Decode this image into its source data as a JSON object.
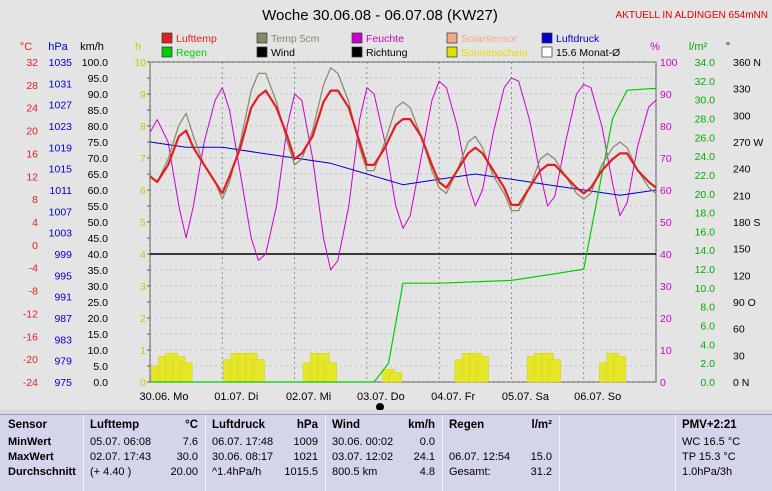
{
  "title": "Woche 30.06.08 - 06.07.08 (KW27)",
  "status": "AKTUELL IN ALDINGEN 654mNN",
  "legend": [
    {
      "name": "Lufttemp",
      "color": "#e02020"
    },
    {
      "name": "Temp 5cm",
      "color": "#888866"
    },
    {
      "name": "Feuchte",
      "color": "#cc00cc"
    },
    {
      "name": "Solarsensor",
      "color": "#f8a888"
    },
    {
      "name": "Luftdruck",
      "color": "#0000cc"
    },
    {
      "name": "Regen",
      "color": "#00cc00"
    },
    {
      "name": "Wind",
      "color": "#000000"
    },
    {
      "name": "Richtung",
      "color": "#000000"
    },
    {
      "name": "Sonnenschein",
      "color": "#e0e000"
    },
    {
      "name": "15.6 Monat-Ø",
      "color": "#ffffff"
    }
  ],
  "chart_data": {
    "type": "line",
    "x_unit_days": "30.06. – 06.07.",
    "x_labels": [
      "30.06. Mo",
      "01.07. Di",
      "02.07. Mi",
      "03.07. Do",
      "04.07. Fr",
      "05.07. Sa",
      "06.07. So"
    ],
    "axes": {
      "temp": {
        "unit": "°C",
        "ticks": [
          32.0,
          28.0,
          24.0,
          20.0,
          16.0,
          12.0,
          8.0,
          4.0,
          0.0,
          -4.0,
          -8.0,
          -12.0,
          -16.0,
          -20.0,
          -24.0
        ],
        "range": [
          -24,
          32
        ],
        "color": "#e02020"
      },
      "pressure": {
        "unit": "hPa",
        "ticks": [
          1035,
          1031,
          1027,
          1023,
          1019,
          1015,
          1011,
          1007,
          1003,
          999,
          995,
          991,
          987,
          983,
          979,
          975
        ],
        "range": [
          975,
          1035
        ],
        "color": "#0000cc"
      },
      "wind": {
        "unit": "km/h",
        "ticks": [
          "100.0",
          "95.0",
          "90.0",
          "85.0",
          "80.0",
          "75.0",
          "70.0",
          "65.0",
          "60.0",
          "55.0",
          "50.0",
          "45.0",
          "40.0",
          "35.0",
          "30.0",
          "25.0",
          "20.0",
          "15.0",
          "10.0",
          "5.0",
          "0.0"
        ],
        "range": [
          0,
          100
        ],
        "color": "#000000"
      },
      "sun": {
        "unit": "h",
        "ticks": [
          10,
          9,
          8,
          7,
          6,
          5,
          4,
          3,
          2,
          1,
          0
        ],
        "range": [
          0,
          10
        ],
        "color": "#c8c800"
      },
      "humidity": {
        "unit": "%",
        "ticks": [
          100,
          90,
          80,
          70,
          60,
          50,
          40,
          30,
          20,
          10,
          0
        ],
        "range": [
          0,
          100
        ],
        "color": "#cc00cc"
      },
      "rain": {
        "unit": "l/m²",
        "ticks": [
          "34.0",
          "32.0",
          "30.0",
          "28.0",
          "26.0",
          "24.0",
          "22.0",
          "20.0",
          "18.0",
          "16.0",
          "14.0",
          "12.0",
          "10.0",
          "8.0",
          "6.0",
          "4.0",
          "2.0",
          "0.0"
        ],
        "range": [
          0,
          34
        ],
        "color": "#00aa00"
      },
      "direction": {
        "unit": "°",
        "ticks": [
          "360 N",
          "330",
          "300",
          "270 W",
          "240",
          "210",
          "180 S",
          "150",
          "120",
          "90 O",
          "60",
          "30",
          "0 N"
        ],
        "range": [
          0,
          360
        ],
        "color": "#000000"
      }
    },
    "reference_line": {
      "axis": "wind",
      "value": 40
    },
    "series": [
      {
        "name": "Lufttemp",
        "axis": "temp",
        "x": [
          0,
          0.1,
          0.25,
          0.4,
          0.5,
          0.6,
          0.75,
          0.9,
          1.0,
          1.1,
          1.25,
          1.4,
          1.5,
          1.6,
          1.75,
          1.9,
          2.0,
          2.1,
          2.25,
          2.4,
          2.5,
          2.6,
          2.75,
          2.9,
          3.0,
          3.1,
          3.25,
          3.4,
          3.5,
          3.6,
          3.75,
          3.9,
          4.0,
          4.1,
          4.25,
          4.4,
          4.5,
          4.6,
          4.75,
          4.9,
          5.0,
          5.1,
          5.25,
          5.4,
          5.5,
          5.6,
          5.75,
          5.9,
          6.0,
          6.1,
          6.25,
          6.4,
          6.5,
          6.6,
          6.75,
          6.9,
          7.0
        ],
        "y": [
          12,
          11,
          14,
          19,
          20,
          17,
          14,
          11,
          9,
          12,
          17,
          24,
          26,
          27,
          24,
          19,
          15,
          16,
          19,
          25,
          27,
          27,
          24,
          18,
          14,
          14,
          17,
          21,
          22,
          22,
          19,
          14,
          11,
          10,
          13,
          16,
          17,
          16,
          13,
          10,
          7,
          7,
          10,
          13,
          14,
          14,
          12,
          10,
          9,
          10,
          13,
          15,
          16,
          16,
          13,
          11,
          10
        ]
      },
      {
        "name": "Temp 5cm",
        "axis": "temp",
        "x": [
          0,
          0.1,
          0.25,
          0.4,
          0.5,
          0.6,
          0.75,
          0.9,
          1.0,
          1.1,
          1.25,
          1.4,
          1.5,
          1.6,
          1.75,
          1.9,
          2.0,
          2.1,
          2.25,
          2.4,
          2.5,
          2.6,
          2.75,
          2.9,
          3.0,
          3.1,
          3.25,
          3.4,
          3.5,
          3.6,
          3.75,
          3.9,
          4.0,
          4.1,
          4.25,
          4.4,
          4.5,
          4.6,
          4.75,
          4.9,
          5.0,
          5.1,
          5.25,
          5.4,
          5.5,
          5.6,
          5.75,
          5.9,
          6.0,
          6.1,
          6.25,
          6.4,
          6.5,
          6.6,
          6.75,
          6.9,
          7.0
        ],
        "y": [
          12,
          11,
          15,
          21,
          23,
          19,
          14,
          11,
          8,
          11,
          18,
          27,
          30,
          30,
          25,
          18,
          14,
          15,
          20,
          28,
          31,
          30,
          25,
          17,
          13,
          13,
          18,
          24,
          25,
          24,
          19,
          13,
          10,
          9,
          13,
          18,
          19,
          17,
          12,
          9,
          6,
          6,
          10,
          15,
          16,
          15,
          12,
          9,
          8,
          9,
          14,
          17,
          18,
          17,
          13,
          10,
          9
        ]
      },
      {
        "name": "Feuchte",
        "axis": "humidity",
        "x": [
          0,
          0.1,
          0.25,
          0.4,
          0.5,
          0.6,
          0.75,
          0.9,
          1.0,
          1.1,
          1.25,
          1.4,
          1.5,
          1.6,
          1.75,
          1.9,
          2.0,
          2.1,
          2.25,
          2.4,
          2.5,
          2.6,
          2.75,
          2.9,
          3.0,
          3.1,
          3.25,
          3.4,
          3.5,
          3.6,
          3.75,
          3.9,
          4.0,
          4.1,
          4.25,
          4.4,
          4.5,
          4.6,
          4.75,
          4.9,
          5.0,
          5.1,
          5.25,
          5.4,
          5.5,
          5.6,
          5.75,
          5.9,
          6.0,
          6.1,
          6.25,
          6.4,
          6.5,
          6.6,
          6.75,
          6.9,
          7.0
        ],
        "y": [
          78,
          82,
          75,
          55,
          45,
          55,
          75,
          88,
          92,
          85,
          65,
          45,
          38,
          40,
          55,
          80,
          90,
          88,
          70,
          45,
          35,
          38,
          55,
          82,
          92,
          90,
          75,
          55,
          48,
          52,
          70,
          88,
          94,
          92,
          80,
          62,
          55,
          60,
          78,
          92,
          95,
          94,
          82,
          65,
          55,
          58,
          75,
          90,
          93,
          92,
          80,
          62,
          52,
          56,
          74,
          86,
          88
        ]
      },
      {
        "name": "Luftdruck",
        "axis": "pressure",
        "x": [
          0,
          0.5,
          1.0,
          1.5,
          2.0,
          2.5,
          3.0,
          3.5,
          4.0,
          4.5,
          5.0,
          5.5,
          6.0,
          6.5,
          7.0
        ],
        "y": [
          1020,
          1019,
          1019,
          1018,
          1017,
          1016,
          1014,
          1012,
          1013,
          1014,
          1013,
          1012,
          1011,
          1010,
          1011
        ]
      },
      {
        "name": "Regen",
        "axis": "rain",
        "x": [
          0,
          3.1,
          3.3,
          3.5,
          4.0,
          5.0,
          5.6,
          6.0,
          6.4,
          6.6,
          7.0
        ],
        "y": [
          0,
          0,
          2.0,
          10.5,
          10.5,
          10.8,
          11.5,
          12.0,
          28.0,
          31.0,
          31.2
        ]
      },
      {
        "name": "Sonnenschein",
        "axis": "sun",
        "x": [
          0.1,
          0.2,
          0.3,
          0.4,
          0.5,
          1.1,
          1.2,
          1.3,
          1.4,
          1.5,
          2.2,
          2.3,
          2.4,
          2.5,
          3.3,
          3.4,
          4.3,
          4.4,
          4.5,
          4.6,
          5.3,
          5.4,
          5.5,
          5.6,
          6.3,
          6.4,
          6.5
        ],
        "y": [
          0.5,
          0.8,
          0.9,
          0.8,
          0.6,
          0.7,
          0.9,
          0.9,
          0.9,
          0.7,
          0.6,
          0.9,
          0.9,
          0.6,
          0.4,
          0.3,
          0.7,
          0.9,
          0.9,
          0.8,
          0.8,
          0.9,
          0.9,
          0.7,
          0.6,
          0.9,
          0.8
        ]
      }
    ]
  },
  "stats": {
    "sensor": {
      "header": "Sensor",
      "rows": [
        "MinWert",
        "MaxWert",
        "Durchschnitt"
      ]
    },
    "lufttemp": {
      "header": "Lufttemp",
      "unit": "°C",
      "rows": [
        [
          "05.07.  06:08",
          "7.6"
        ],
        [
          "02.07.  17:43",
          "30.0"
        ],
        [
          "(+ 4.40 )",
          "20.00"
        ]
      ]
    },
    "luftdruck": {
      "header": "Luftdruck",
      "unit": "hPa",
      "rows": [
        [
          "06.07.  17:48",
          "1009"
        ],
        [
          "30.06.  08:17",
          "1021"
        ],
        [
          "^1.4hPa/h",
          "1015.5"
        ]
      ]
    },
    "wind": {
      "header": "Wind",
      "unit": "km/h",
      "rows": [
        [
          "30.06.  00:02",
          "0.0"
        ],
        [
          "03.07.  12:02",
          "24.1"
        ],
        [
          "800.5 km",
          "4.8"
        ]
      ]
    },
    "regen": {
      "header": "Regen",
      "unit": "l/m²",
      "rows": [
        [
          "",
          ""
        ],
        [
          "06.07.  12:54",
          "15.0"
        ],
        [
          "Gesamt:",
          "31.2"
        ]
      ]
    },
    "pmv": {
      "header": "PMV+2:21",
      "rows": [
        "WC 16.5 °C",
        "TP 15.3 °C",
        "1.0hPa/3h"
      ]
    }
  }
}
